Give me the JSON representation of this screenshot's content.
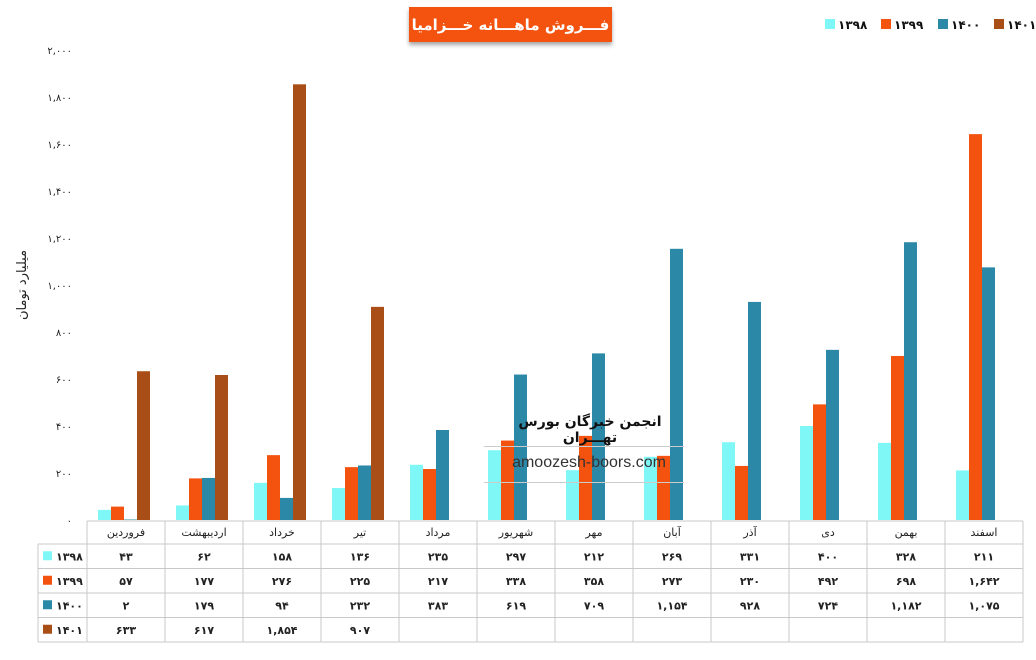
{
  "title": "فـــروش ماهـــانه خـــزامیا",
  "watermark": {
    "title": "انجمن خبرگان بورس تهـــران",
    "url": "amoozesh-boors.com"
  },
  "chart_data": {
    "type": "bar",
    "ylabel": "میلیارد تومان",
    "ylim": [
      0,
      2000
    ],
    "yticks": [
      0,
      200,
      400,
      600,
      800,
      1000,
      1200,
      1400,
      1600,
      1800,
      2000
    ],
    "ytick_labels": [
      "۰",
      "۲۰۰",
      "۴۰۰",
      "۶۰۰",
      "۸۰۰",
      "۱,۰۰۰",
      "۱,۲۰۰",
      "۱,۴۰۰",
      "۱,۶۰۰",
      "۱,۸۰۰",
      "۲,۰۰۰"
    ],
    "grid": false,
    "legend_position": "top-right",
    "categories": [
      "فروردین",
      "اردیبهشت",
      "خرداد",
      "تیر",
      "مرداد",
      "شهریور",
      "مهر",
      "آبان",
      "آذر",
      "دی",
      "بهمن",
      "اسفند"
    ],
    "series": [
      {
        "name": "۱۳۹۸",
        "color": "#7ff7f7",
        "values": [
          43,
          62,
          158,
          136,
          235,
          297,
          212,
          269,
          331,
          400,
          328,
          211
        ],
        "labels": [
          "۴۳",
          "۶۲",
          "۱۵۸",
          "۱۳۶",
          "۲۳۵",
          "۲۹۷",
          "۲۱۲",
          "۲۶۹",
          "۳۳۱",
          "۴۰۰",
          "۳۲۸",
          "۲۱۱"
        ]
      },
      {
        "name": "۱۳۹۹",
        "color": "#f4520f",
        "values": [
          57,
          177,
          276,
          225,
          217,
          338,
          358,
          273,
          230,
          492,
          698,
          1642
        ],
        "labels": [
          "۵۷",
          "۱۷۷",
          "۲۷۶",
          "۲۲۵",
          "۲۱۷",
          "۳۳۸",
          "۳۵۸",
          "۲۷۳",
          "۲۳۰",
          "۴۹۲",
          "۶۹۸",
          "۱,۶۴۲"
        ]
      },
      {
        "name": "۱۴۰۰",
        "color": "#2b88a6",
        "values": [
          2,
          179,
          94,
          232,
          383,
          619,
          709,
          1154,
          928,
          724,
          1182,
          1075
        ],
        "labels": [
          "۲",
          "۱۷۹",
          "۹۴",
          "۲۳۲",
          "۳۸۳",
          "۶۱۹",
          "۷۰۹",
          "۱,۱۵۴",
          "۹۲۸",
          "۷۲۴",
          "۱,۱۸۲",
          "۱,۰۷۵"
        ]
      },
      {
        "name": "۱۴۰۱",
        "color": "#a84e16",
        "values": [
          633,
          617,
          1854,
          907,
          null,
          null,
          null,
          null,
          null,
          null,
          null,
          null
        ],
        "labels": [
          "۶۳۳",
          "۶۱۷",
          "۱,۸۵۴",
          "۹۰۷",
          "",
          "",
          "",
          "",
          "",
          "",
          "",
          ""
        ]
      }
    ]
  }
}
